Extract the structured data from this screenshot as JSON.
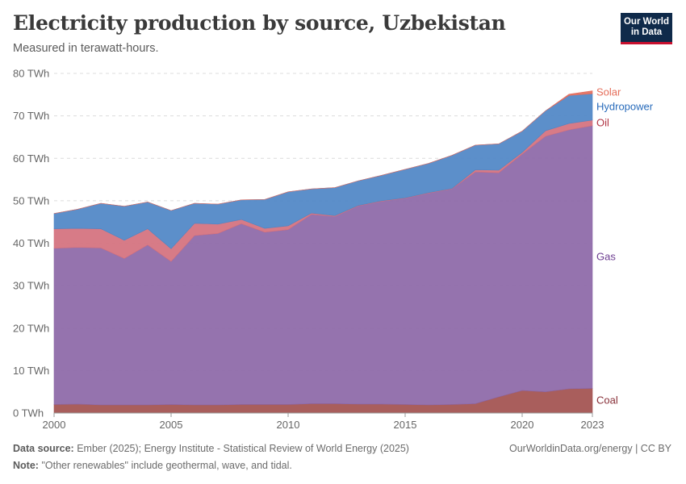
{
  "header": {
    "title": "Electricity production by source, Uzbekistan",
    "subtitle": "Measured in terawatt-hours.",
    "logo_line1": "Our World",
    "logo_line2": "in Data"
  },
  "footer": {
    "source_label": "Data source:",
    "source_text": "Ember (2025); Energy Institute - Statistical Review of World Energy (2025)",
    "note_label": "Note:",
    "note_text": "\"Other renewables\" include geothermal, wave, and tidal.",
    "credit": "OurWorldinData.org/energy | CC BY"
  },
  "chart_data": {
    "type": "area",
    "stacked": true,
    "title": "Electricity production by source, Uzbekistan",
    "subtitle": "Measured in terawatt-hours.",
    "y_unit": "TWh",
    "ylim": [
      0,
      80
    ],
    "y_ticks": [
      0,
      10,
      20,
      30,
      40,
      50,
      60,
      70,
      80
    ],
    "y_tick_labels": [
      "0 TWh",
      "10 TWh",
      "20 TWh",
      "30 TWh",
      "40 TWh",
      "50 TWh",
      "60 TWh",
      "70 TWh",
      "80 TWh"
    ],
    "x_ticks": [
      2000,
      2005,
      2010,
      2015,
      2020,
      2023
    ],
    "grid": "horizontal-dashed",
    "legend": "right-side labels",
    "x": [
      2000,
      2001,
      2002,
      2003,
      2004,
      2005,
      2006,
      2007,
      2008,
      2009,
      2010,
      2011,
      2012,
      2013,
      2014,
      2015,
      2016,
      2017,
      2018,
      2019,
      2020,
      2021,
      2022,
      2023
    ],
    "series": [
      {
        "name": "Coal",
        "color": "#a2504e",
        "label_color": "#883039",
        "values": [
          2.0,
          2.1,
          1.9,
          1.9,
          1.9,
          2.0,
          1.9,
          1.9,
          2.0,
          2.0,
          2.0,
          2.2,
          2.2,
          2.1,
          2.1,
          2.0,
          1.9,
          2.0,
          2.2,
          3.8,
          5.3,
          5.0,
          5.7,
          5.8
        ]
      },
      {
        "name": "Gas",
        "color": "#8c67a7",
        "label_color": "#6d3e91",
        "values": [
          36.8,
          36.9,
          37.0,
          34.5,
          37.7,
          33.7,
          39.9,
          40.4,
          42.6,
          40.6,
          41.2,
          44.6,
          44.1,
          46.7,
          47.8,
          48.6,
          49.9,
          50.8,
          54.6,
          52.8,
          55.7,
          60.2,
          61.0,
          61.9
        ]
      },
      {
        "name": "Oil",
        "color": "#d4707d",
        "label_color": "#b13544",
        "values": [
          4.6,
          4.5,
          4.5,
          4.3,
          3.8,
          3.0,
          2.9,
          2.2,
          1.0,
          0.9,
          0.9,
          0.3,
          0.2,
          0.1,
          0.1,
          0.1,
          0.1,
          0.1,
          0.5,
          0.6,
          0.4,
          1.3,
          1.5,
          1.3
        ]
      },
      {
        "name": "Hydropower",
        "color": "#4e86c6",
        "label_color": "#286bbb",
        "values": [
          3.6,
          4.5,
          6.0,
          8.0,
          6.3,
          9.0,
          4.7,
          4.7,
          4.6,
          6.8,
          8.0,
          5.7,
          6.6,
          5.8,
          6.0,
          6.7,
          6.9,
          7.8,
          5.8,
          6.2,
          5.0,
          4.7,
          6.6,
          6.2
        ]
      },
      {
        "name": "Solar",
        "color": "#e36b5b",
        "label_color": "#e56e5a",
        "values": [
          0,
          0,
          0,
          0,
          0,
          0,
          0,
          0,
          0,
          0,
          0,
          0,
          0,
          0,
          0,
          0,
          0,
          0,
          0,
          0,
          0,
          0,
          0.3,
          0.7
        ]
      }
    ]
  }
}
